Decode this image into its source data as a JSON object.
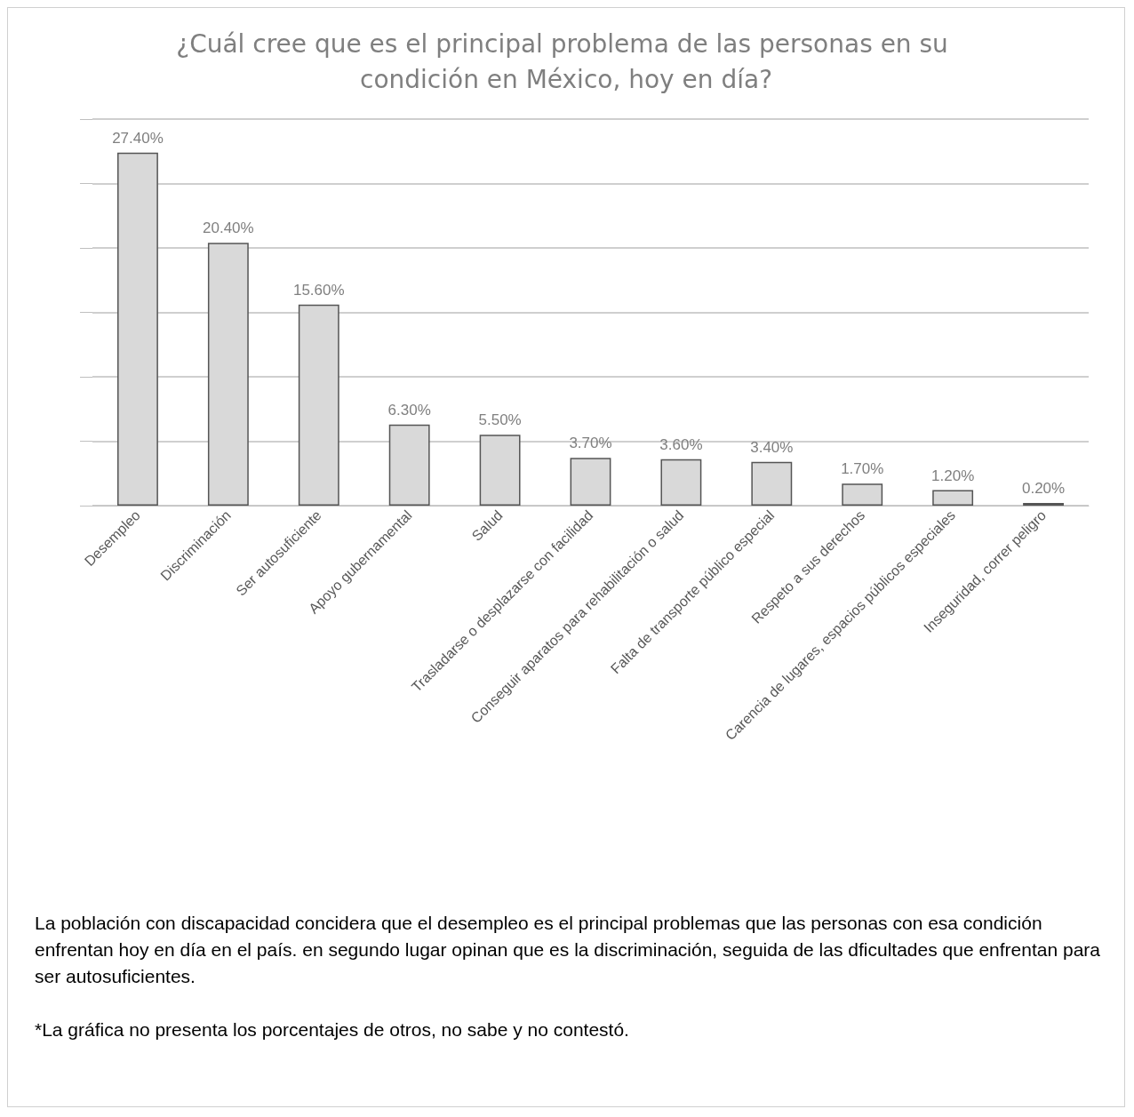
{
  "chart_data": {
    "type": "bar",
    "title": "¿Cuál cree que es el principal problema de las personas en su condición en México, hoy en día?",
    "categories": [
      "Desempleo",
      "Discriminación",
      "Ser autosuficiente",
      "Apoyo gubernamental",
      "Salud",
      "Trasladarse o desplazarse con facilidad",
      "Conseguir aparatos para rehabilitación o salud",
      "Falta de transporte público especial",
      "Respeto a sus derechos",
      "Carencia de lugares, espacios públicos especiales",
      "Inseguridad, correr peligro"
    ],
    "values": [
      27.4,
      20.4,
      15.6,
      6.3,
      5.5,
      3.7,
      3.6,
      3.4,
      1.7,
      1.2,
      0.2
    ],
    "value_labels": [
      "27.40%",
      "20.40%",
      "15.60%",
      "6.30%",
      "5.50%",
      "3.70%",
      "3.60%",
      "3.40%",
      "1.70%",
      "1.20%",
      "0.20%"
    ],
    "color": "#d9d9d9",
    "ylim": [
      0,
      30
    ],
    "yticks": [
      {
        "value": 0,
        "label": null
      },
      {
        "value": 5,
        "label": null
      },
      {
        "value": 10,
        "label": null
      },
      {
        "value": 15,
        "label": null
      },
      {
        "value": 20,
        "label": null
      },
      {
        "value": 25,
        "label": null
      },
      {
        "value": 30,
        "label": null
      }
    ],
    "grid": "y",
    "tick_labels": "x",
    "annotations": [
      "La población con discapacidad concidera que el desempleo es el principal problemas que las personas con esa condición enfrentan hoy en día en el país. en segundo lugar opinan que es la discriminación, seguida de las dficultades que enfrentan para ser autosuficientes.",
      "*La gráfica no presenta los porcentajes de otros, no sabe y no contestó."
    ]
  }
}
